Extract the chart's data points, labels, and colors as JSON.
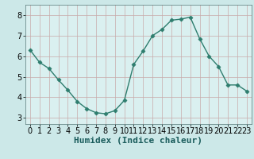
{
  "x": [
    0,
    1,
    2,
    3,
    4,
    5,
    6,
    7,
    8,
    9,
    10,
    11,
    12,
    13,
    14,
    15,
    16,
    17,
    18,
    19,
    20,
    21,
    22,
    23
  ],
  "y": [
    6.3,
    5.7,
    5.4,
    4.85,
    4.35,
    3.8,
    3.45,
    3.25,
    3.2,
    3.35,
    3.85,
    5.6,
    6.25,
    7.0,
    7.3,
    7.75,
    7.8,
    7.9,
    6.85,
    6.0,
    5.5,
    4.6,
    4.6,
    4.3
  ],
  "xlabel": "Humidex (Indice chaleur)",
  "xlim": [
    -0.5,
    23.5
  ],
  "ylim": [
    2.7,
    8.5
  ],
  "yticks": [
    3,
    4,
    5,
    6,
    7,
    8
  ],
  "xticks": [
    0,
    1,
    2,
    3,
    4,
    5,
    6,
    7,
    8,
    9,
    10,
    11,
    12,
    13,
    14,
    15,
    16,
    17,
    18,
    19,
    20,
    21,
    22,
    23
  ],
  "line_color": "#2e7d6e",
  "marker": "D",
  "marker_size": 2.5,
  "bg_color": "#cce8e8",
  "grid_color_major": "#c8aaaa",
  "grid_color_minor": "#c8aaaa",
  "axis_bg": "#daf0f0",
  "xlabel_fontsize": 8,
  "tick_fontsize": 7
}
